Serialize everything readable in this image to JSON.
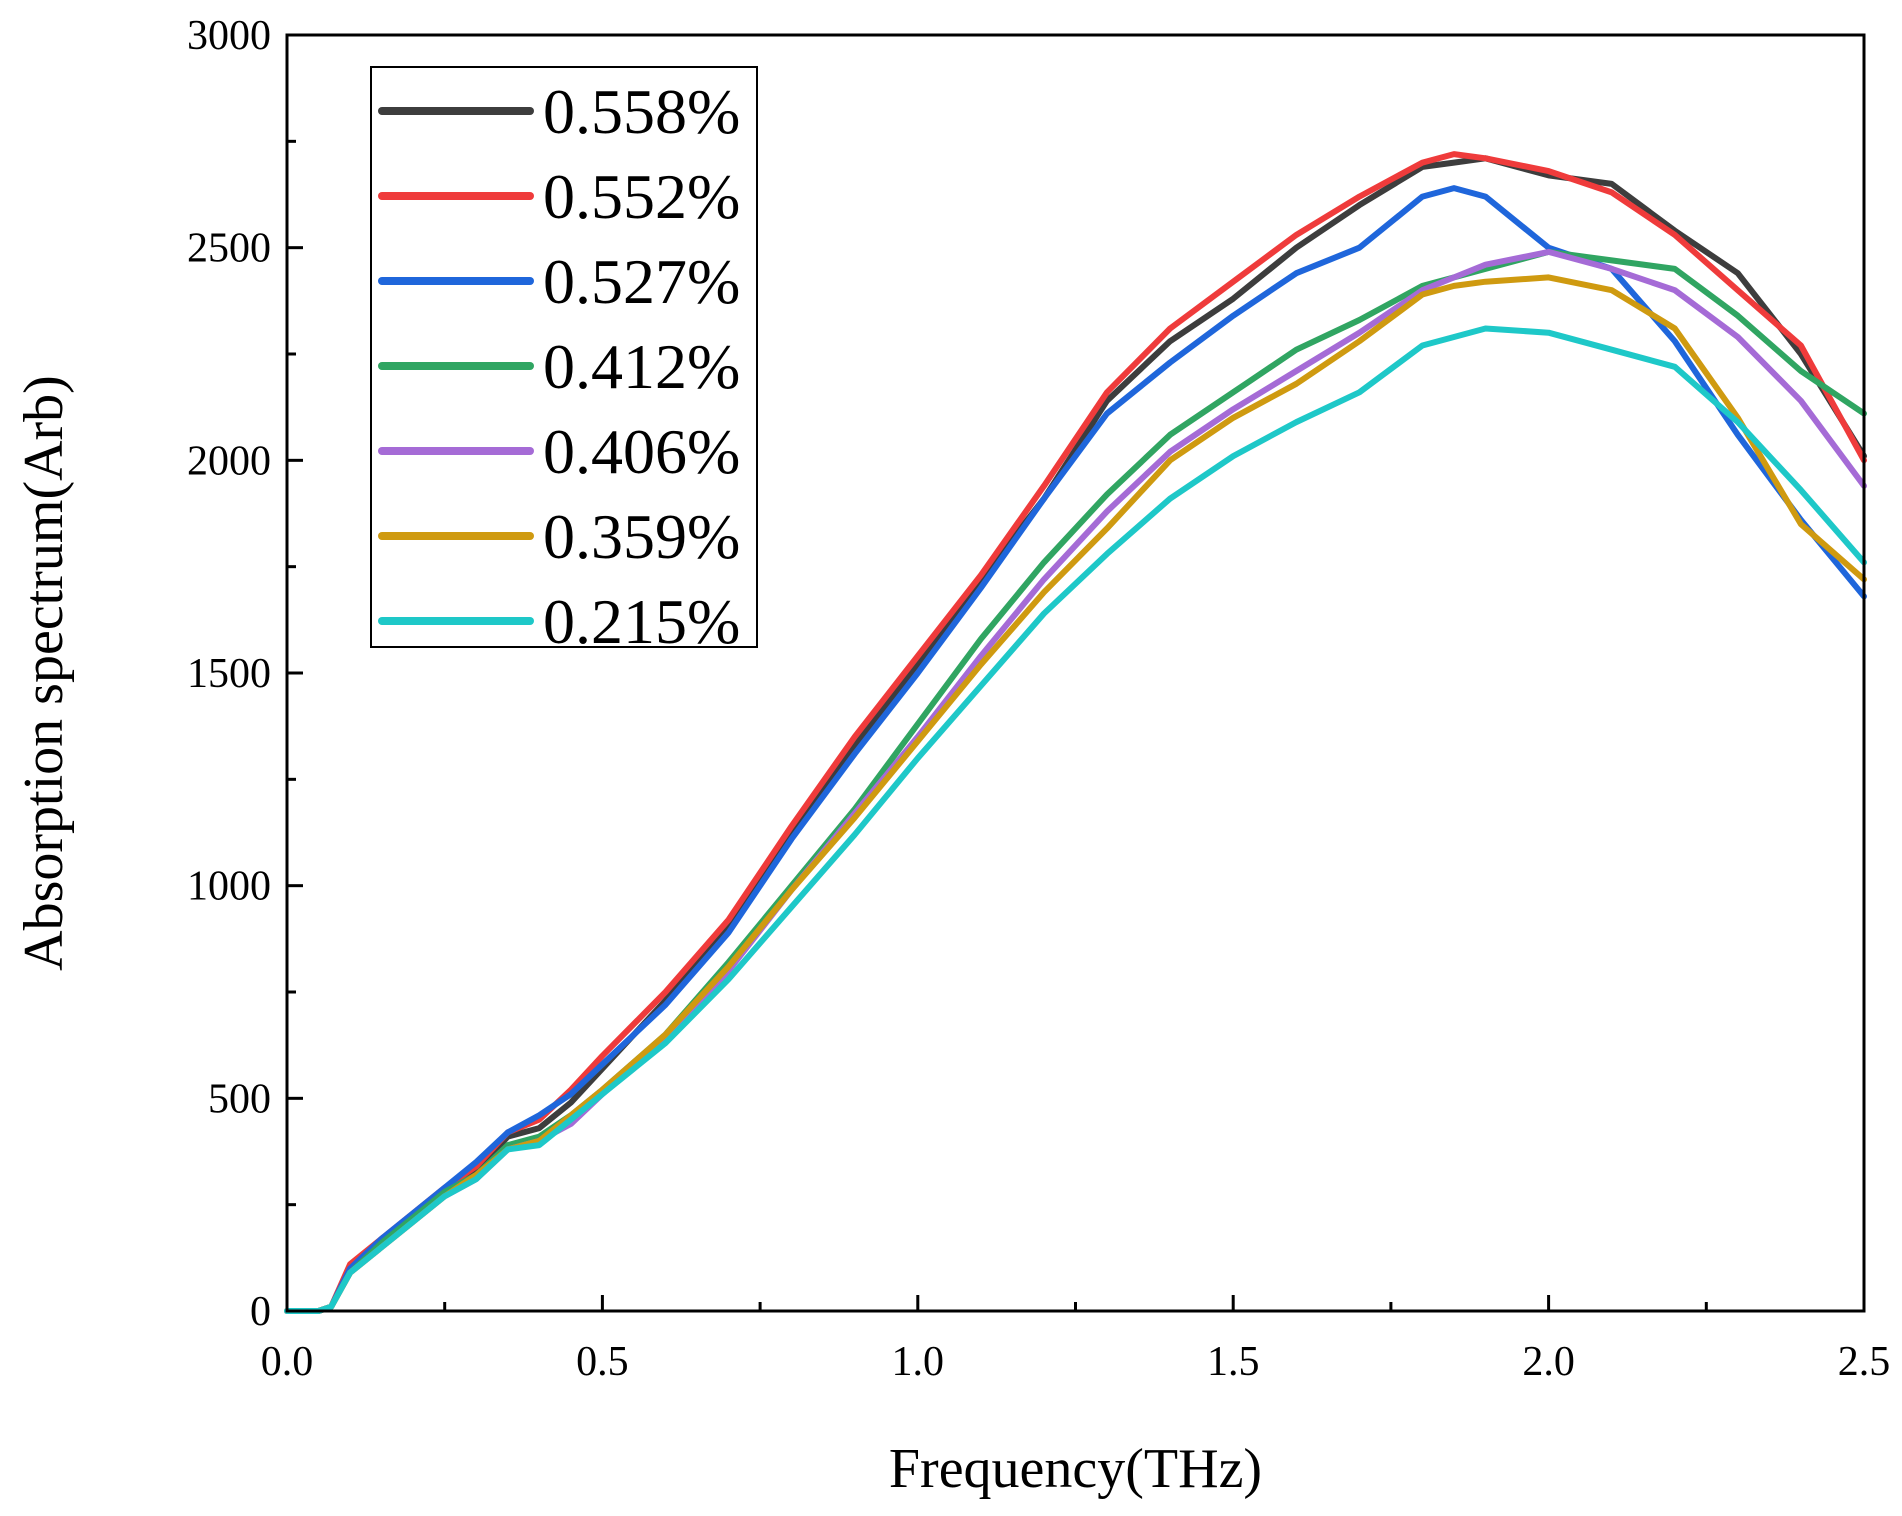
{
  "chart_data": {
    "type": "line",
    "title": "",
    "xlabel": "Frequency(THz)",
    "ylabel": "Absorption spectrum(Arb)",
    "xlim": [
      0.0,
      2.5
    ],
    "ylim": [
      0,
      3000
    ],
    "xticks": [
      0.0,
      0.5,
      1.0,
      1.5,
      2.0,
      2.5
    ],
    "xtick_labels": [
      "0.0",
      "0.5",
      "1.0",
      "1.5",
      "2.0",
      "2.5"
    ],
    "yticks": [
      0,
      500,
      1000,
      1500,
      2000,
      2500,
      3000
    ],
    "ytick_labels": [
      "0",
      "500",
      "1000",
      "1500",
      "2000",
      "2500",
      "3000"
    ],
    "grid": false,
    "legend_position": "top-left",
    "x": [
      0.0,
      0.05,
      0.07,
      0.1,
      0.15,
      0.2,
      0.25,
      0.3,
      0.35,
      0.4,
      0.45,
      0.5,
      0.6,
      0.7,
      0.8,
      0.9,
      1.0,
      1.1,
      1.2,
      1.3,
      1.4,
      1.5,
      1.6,
      1.7,
      1.8,
      1.85,
      1.9,
      2.0,
      2.1,
      2.2,
      2.3,
      2.4,
      2.5
    ],
    "series": [
      {
        "name": "0.558%",
        "color": "#3d3d3d",
        "values": [
          0,
          0,
          10,
          100,
          160,
          220,
          280,
          330,
          410,
          430,
          490,
          570,
          730,
          900,
          1120,
          1330,
          1520,
          1720,
          1910,
          2140,
          2280,
          2380,
          2500,
          2600,
          2690,
          2700,
          2710,
          2670,
          2650,
          2540,
          2440,
          2250,
          2010
        ]
      },
      {
        "name": "0.552%",
        "color": "#ef3b3b",
        "values": [
          0,
          0,
          10,
          110,
          170,
          230,
          290,
          340,
          420,
          450,
          520,
          600,
          750,
          920,
          1140,
          1350,
          1540,
          1730,
          1940,
          2160,
          2310,
          2420,
          2530,
          2620,
          2700,
          2720,
          2710,
          2680,
          2630,
          2530,
          2400,
          2270,
          2000
        ]
      },
      {
        "name": "0.527%",
        "color": "#1f66db",
        "values": [
          0,
          0,
          10,
          100,
          170,
          230,
          290,
          350,
          420,
          460,
          510,
          580,
          720,
          890,
          1110,
          1310,
          1500,
          1700,
          1910,
          2110,
          2230,
          2340,
          2440,
          2500,
          2620,
          2640,
          2620,
          2500,
          2450,
          2280,
          2060,
          1860,
          1680
        ]
      },
      {
        "name": "0.412%",
        "color": "#30a562",
        "values": [
          0,
          0,
          10,
          90,
          160,
          220,
          280,
          320,
          390,
          410,
          460,
          520,
          650,
          820,
          1000,
          1180,
          1380,
          1580,
          1760,
          1920,
          2060,
          2160,
          2260,
          2330,
          2410,
          2430,
          2450,
          2490,
          2470,
          2450,
          2340,
          2210,
          2110
        ]
      },
      {
        "name": "0.406%",
        "color": "#a56bd6",
        "values": [
          0,
          0,
          10,
          90,
          150,
          210,
          270,
          310,
          380,
          400,
          440,
          510,
          640,
          800,
          990,
          1170,
          1350,
          1540,
          1720,
          1880,
          2020,
          2120,
          2210,
          2300,
          2400,
          2430,
          2460,
          2490,
          2450,
          2400,
          2290,
          2140,
          1940
        ]
      },
      {
        "name": "0.359%",
        "color": "#cf9a10",
        "values": [
          0,
          0,
          10,
          90,
          150,
          210,
          270,
          320,
          380,
          400,
          460,
          520,
          650,
          810,
          990,
          1160,
          1340,
          1520,
          1690,
          1840,
          2000,
          2100,
          2180,
          2280,
          2390,
          2410,
          2420,
          2430,
          2400,
          2310,
          2100,
          1850,
          1720
        ]
      },
      {
        "name": "0.215%",
        "color": "#1ec8c8",
        "values": [
          0,
          0,
          10,
          90,
          150,
          210,
          270,
          310,
          380,
          390,
          450,
          510,
          630,
          780,
          950,
          1120,
          1300,
          1470,
          1640,
          1780,
          1910,
          2010,
          2090,
          2160,
          2270,
          2290,
          2310,
          2300,
          2260,
          2220,
          2090,
          1930,
          1760
        ]
      }
    ]
  }
}
